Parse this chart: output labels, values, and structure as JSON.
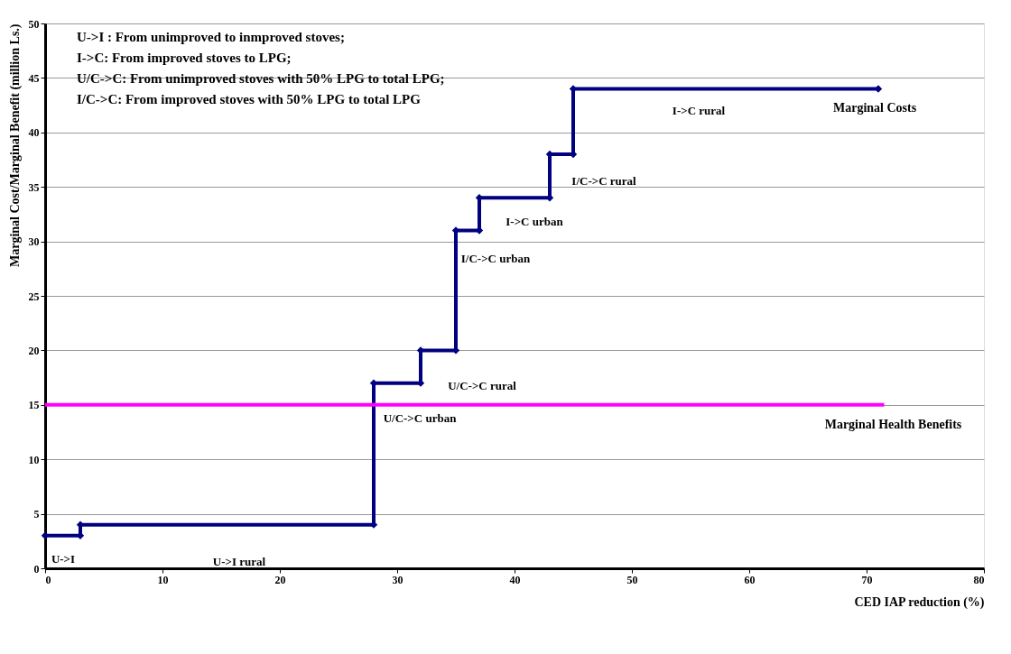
{
  "chart_data": {
    "type": "line",
    "xlabel": "CED IAP reduction (%)",
    "ylabel": "Marginal Cost/Marginal Benefit (million Ls.)",
    "xlim": [
      0,
      80
    ],
    "xticks": [
      0,
      10,
      20,
      30,
      40,
      50,
      60,
      70,
      80
    ],
    "ylim": [
      0,
      50
    ],
    "yticks": [
      0,
      5,
      10,
      15,
      20,
      25,
      30,
      35,
      40,
      45,
      50
    ],
    "grid": "y",
    "line_style": "solid",
    "series": [
      {
        "name": "Marginal Costs",
        "color": "#000080",
        "marker": "diamond",
        "x": [
          0,
          3,
          3,
          28,
          28,
          32,
          32,
          35,
          35,
          37,
          37,
          43,
          43,
          45,
          45,
          71
        ],
        "values": [
          3,
          3,
          4,
          4,
          17,
          17,
          20,
          20,
          31,
          31,
          34,
          34,
          38,
          38,
          44,
          44
        ]
      },
      {
        "name": "Marginal Health Benefits",
        "color": "#ff00ff",
        "marker": "none",
        "x": [
          0,
          71.5
        ],
        "values": [
          15,
          15
        ]
      }
    ],
    "annotations": [
      "U->I : From unimproved to inmproved stoves;",
      "I->C: From improved stoves to LPG;",
      "U/C->C: From unimproved stoves with 50% LPG to total LPG;",
      "I/C->C: From improved stoves with 50% LPG to total LPG",
      "U->I",
      "U->I rural",
      "U/C->C urban",
      "U/C->C rural",
      "I/C->C urban",
      "I->C urban",
      "I/C->C rural",
      "I->C rural"
    ]
  }
}
